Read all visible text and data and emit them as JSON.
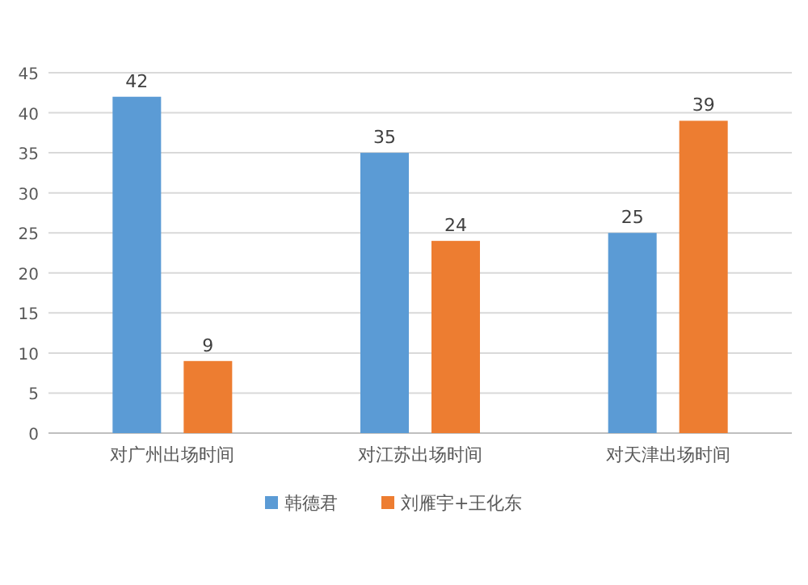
{
  "chart_data": {
    "type": "bar",
    "categories": [
      "对广州出场时间",
      "对江苏出场时间",
      "对天津出场时间"
    ],
    "series": [
      {
        "name": "韩德君",
        "color": "#5b9bd5",
        "values": [
          42,
          35,
          25
        ]
      },
      {
        "name": "刘雁宇+王化东",
        "color": "#ed7d31",
        "values": [
          9,
          24,
          39
        ]
      }
    ],
    "ylim": [
      0,
      45
    ],
    "yticks": [
      0,
      5,
      10,
      15,
      20,
      25,
      30,
      35,
      40,
      45
    ],
    "grid": "y",
    "legend": "bottom",
    "data_labels": true
  }
}
